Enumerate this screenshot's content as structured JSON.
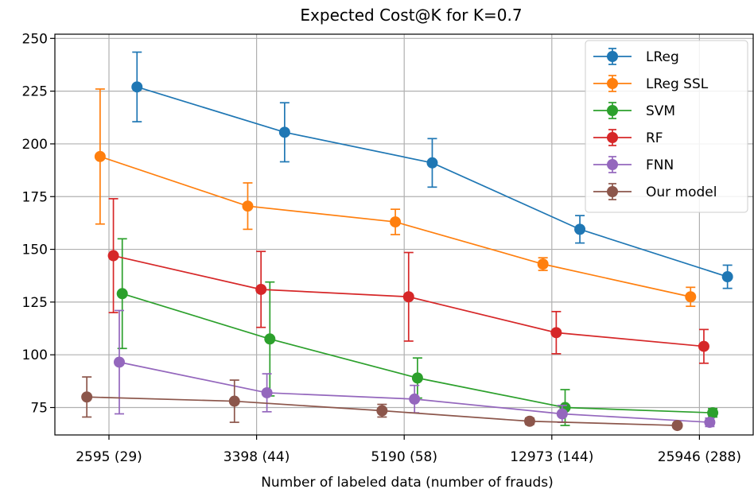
{
  "chart_data": {
    "type": "line",
    "title": "Expected Cost@K for K=0.7",
    "xlabel": "Number of labeled data (number of frauds)",
    "ylabel": "",
    "categories": [
      "2595 (29)",
      "3398 (44)",
      "5190 (58)",
      "12973 (144)",
      "25946 (288)"
    ],
    "yticks": [
      75,
      100,
      125,
      150,
      175,
      200,
      225,
      250
    ],
    "ylim": [
      62,
      252
    ],
    "grid": true,
    "legend_position": "top-right",
    "series": [
      {
        "name": "LReg",
        "color": "#1f77b4",
        "offset": 0.19,
        "values": [
          227,
          205.5,
          191,
          159.5,
          137
        ],
        "err": [
          16.5,
          14,
          11.5,
          6.5,
          5.5
        ]
      },
      {
        "name": "LReg SSL",
        "color": "#ff7f0e",
        "offset": -0.06,
        "values": [
          194,
          170.5,
          163,
          143,
          127.5
        ],
        "err": [
          32,
          11,
          6,
          3,
          4.5
        ]
      },
      {
        "name": "SVM",
        "color": "#2ca02c",
        "offset": 0.09,
        "values": [
          129,
          107.5,
          89,
          75,
          72.5
        ],
        "err": [
          26,
          27,
          9.5,
          8.5,
          2
        ]
      },
      {
        "name": "RF",
        "color": "#d62728",
        "offset": 0.03,
        "values": [
          147,
          131,
          127.5,
          110.5,
          104
        ],
        "err": [
          27,
          18,
          21,
          10,
          8
        ]
      },
      {
        "name": "FNN",
        "color": "#9467bd",
        "offset": 0.07,
        "values": [
          96.5,
          82,
          79,
          72,
          68
        ],
        "err": [
          24.5,
          9,
          6.5,
          4,
          2
        ]
      },
      {
        "name": "Our model",
        "color": "#8c564b",
        "offset": -0.15,
        "values": [
          80,
          78,
          73.5,
          68.5,
          66.5
        ],
        "err": [
          9.5,
          10,
          3,
          1.5,
          1
        ]
      }
    ]
  }
}
